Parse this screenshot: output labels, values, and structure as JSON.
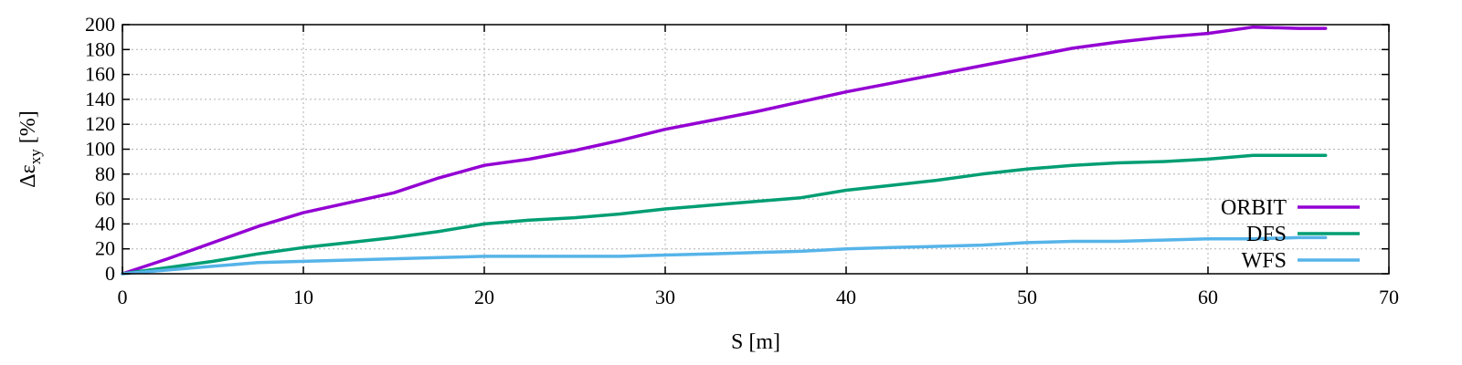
{
  "chart_data": {
    "type": "line",
    "xlabel": "S [m]",
    "ylabel": "Δε",
    "ylabel_sub": "xy",
    "ylabel_unit": " [%]",
    "xlim": [
      0,
      70
    ],
    "ylim": [
      0,
      200
    ],
    "xticks": [
      0,
      10,
      20,
      30,
      40,
      50,
      60,
      70
    ],
    "yticks": [
      0,
      20,
      40,
      60,
      80,
      100,
      120,
      140,
      160,
      180,
      200
    ],
    "grid": true,
    "legend_position": "bottom-right",
    "series": [
      {
        "name": "ORBIT",
        "color": "#9400d3",
        "x": [
          0,
          2.5,
          5,
          7.5,
          10,
          12.5,
          15,
          17.5,
          20,
          22.5,
          25,
          27.5,
          30,
          32.5,
          35,
          37.5,
          40,
          42.5,
          45,
          47.5,
          50,
          52.5,
          55,
          57.5,
          60,
          62.5,
          65,
          66.5
        ],
        "y": [
          0,
          12,
          25,
          38,
          49,
          57,
          65,
          77,
          87,
          92,
          99,
          107,
          116,
          123,
          130,
          138,
          146,
          153,
          160,
          167,
          174,
          181,
          186,
          190,
          193,
          198,
          197,
          197
        ]
      },
      {
        "name": "DFS",
        "color": "#009e73",
        "x": [
          0,
          2.5,
          5,
          7.5,
          10,
          12.5,
          15,
          17.5,
          20,
          22.5,
          25,
          27.5,
          30,
          32.5,
          35,
          37.5,
          40,
          42.5,
          45,
          47.5,
          50,
          52.5,
          55,
          57.5,
          60,
          62.5,
          65,
          66.5
        ],
        "y": [
          0,
          5,
          10,
          16,
          21,
          25,
          29,
          34,
          40,
          43,
          45,
          48,
          52,
          55,
          58,
          61,
          67,
          71,
          75,
          80,
          84,
          87,
          89,
          90,
          92,
          95,
          95,
          95
        ]
      },
      {
        "name": "WFS",
        "color": "#56b4e9",
        "x": [
          0,
          2.5,
          5,
          7.5,
          10,
          12.5,
          15,
          17.5,
          20,
          22.5,
          25,
          27.5,
          30,
          32.5,
          35,
          37.5,
          40,
          42.5,
          45,
          47.5,
          50,
          52.5,
          55,
          57.5,
          60,
          62.5,
          65,
          66.5
        ],
        "y": [
          0,
          3,
          6,
          9,
          10,
          11,
          12,
          13,
          14,
          14,
          14,
          14,
          15,
          16,
          17,
          18,
          20,
          21,
          22,
          23,
          25,
          26,
          26,
          27,
          28,
          28,
          29,
          29
        ]
      }
    ]
  }
}
